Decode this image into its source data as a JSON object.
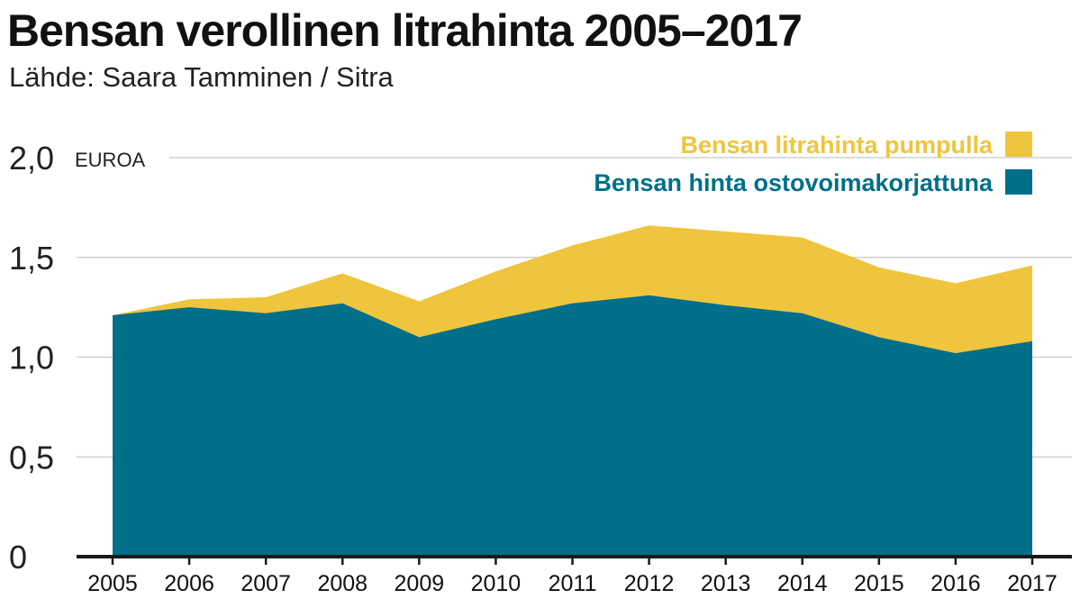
{
  "title": "Bensan verollinen litrahinta 2005–2017",
  "subtitle": "Lähde: Saara Tamminen / Sitra",
  "chart_data": {
    "type": "area",
    "title": "Bensan verollinen litrahinta 2005–2017",
    "subtitle": "Lähde: Saara Tamminen / Sitra",
    "unit_label": "EUROA",
    "x": [
      2005,
      2006,
      2007,
      2008,
      2009,
      2010,
      2011,
      2012,
      2013,
      2014,
      2015,
      2016,
      2017
    ],
    "x_tick_labels": [
      "2005",
      "2006",
      "2007",
      "2008",
      "2009",
      "2010",
      "2011",
      "2012",
      "2013",
      "2014",
      "2015",
      "2016",
      "2017"
    ],
    "y_ticks": [
      0,
      0.5,
      1.0,
      1.5,
      2.0
    ],
    "y_tick_labels": [
      "0",
      "0,5",
      "1,0",
      "1,5",
      "2,0"
    ],
    "ylim": [
      0,
      2.0
    ],
    "grid": true,
    "legend_position": "top-right",
    "series": [
      {
        "name": "Bensan litrahinta pumpulla",
        "color": "#efc53d",
        "values": [
          1.21,
          1.29,
          1.3,
          1.42,
          1.28,
          1.43,
          1.56,
          1.66,
          1.63,
          1.6,
          1.45,
          1.37,
          1.46
        ]
      },
      {
        "name": "Bensan hinta ostovoimakorjattuna",
        "color": "#006f8a",
        "values": [
          1.21,
          1.25,
          1.22,
          1.27,
          1.1,
          1.19,
          1.27,
          1.31,
          1.26,
          1.22,
          1.1,
          1.02,
          1.08
        ]
      }
    ]
  }
}
